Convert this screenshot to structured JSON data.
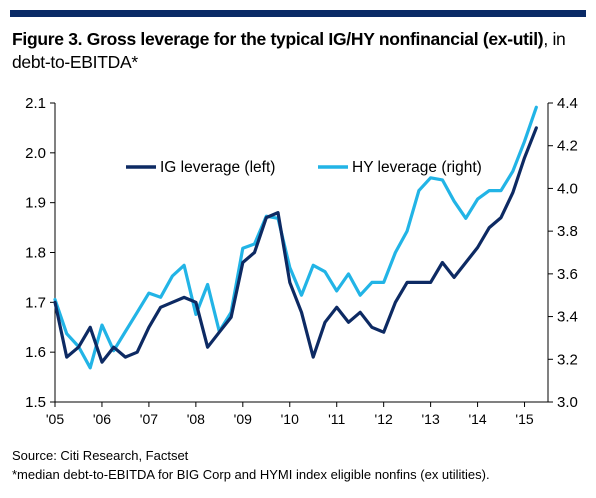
{
  "title": {
    "bold": "Figure 3. Gross leverage for the typical IG/HY nonfinancial (ex-util)",
    "rest": ", in debt-to-EBITDA*"
  },
  "footer": {
    "source": "Source: Citi Research, Factset",
    "note": "*median debt-to-EBITDA for BIG Corp and HYMI index eligible nonfins (ex utilities)."
  },
  "colors": {
    "ig": "#0d2a63",
    "hy": "#22b4e6",
    "rule": "#0a2a66"
  },
  "chart_data": {
    "type": "line",
    "x_tick_labels": [
      "'05",
      "'06",
      "'07",
      "'08",
      "'09",
      "'10",
      "'11",
      "'12",
      "'13",
      "'14",
      "'15"
    ],
    "x": [
      "2005Q1",
      "2005Q2",
      "2005Q3",
      "2005Q4",
      "2006Q1",
      "2006Q2",
      "2006Q3",
      "2006Q4",
      "2007Q1",
      "2007Q2",
      "2007Q3",
      "2007Q4",
      "2008Q1",
      "2008Q2",
      "2008Q3",
      "2008Q4",
      "2009Q1",
      "2009Q2",
      "2009Q3",
      "2009Q4",
      "2010Q1",
      "2010Q2",
      "2010Q3",
      "2010Q4",
      "2011Q1",
      "2011Q2",
      "2011Q3",
      "2011Q4",
      "2012Q1",
      "2012Q2",
      "2012Q3",
      "2012Q4",
      "2013Q1",
      "2013Q2",
      "2013Q3",
      "2013Q4",
      "2014Q1",
      "2014Q2",
      "2014Q3",
      "2014Q4",
      "2015Q1",
      "2015Q2"
    ],
    "y_left": {
      "label": "",
      "range": [
        1.5,
        2.1
      ],
      "ticks": [
        "1.5",
        "1.6",
        "1.7",
        "1.8",
        "1.9",
        "2.0",
        "2.1"
      ]
    },
    "y_right": {
      "label": "",
      "range": [
        3.0,
        4.4
      ],
      "ticks": [
        "3.0",
        "3.2",
        "3.4",
        "3.6",
        "3.8",
        "4.0",
        "4.2",
        "4.4"
      ]
    },
    "grid": false,
    "legend": "top-left",
    "series": [
      {
        "name": "IG leverage (left)",
        "axis": "left",
        "values": [
          1.7,
          1.59,
          1.61,
          1.65,
          1.58,
          1.61,
          1.59,
          1.6,
          1.65,
          1.69,
          1.7,
          1.71,
          1.7,
          1.61,
          1.64,
          1.67,
          1.78,
          1.8,
          1.87,
          1.88,
          1.74,
          1.68,
          1.59,
          1.66,
          1.69,
          1.66,
          1.68,
          1.65,
          1.64,
          1.7,
          1.74,
          1.74,
          1.74,
          1.78,
          1.75,
          1.78,
          1.81,
          1.85,
          1.87,
          1.92,
          1.99,
          2.05
        ]
      },
      {
        "name": "HY leverage (right)",
        "axis": "right",
        "values": [
          3.48,
          3.32,
          3.26,
          3.16,
          3.36,
          3.24,
          3.33,
          3.42,
          3.51,
          3.49,
          3.59,
          3.64,
          3.41,
          3.55,
          3.33,
          3.42,
          3.72,
          3.74,
          3.87,
          3.86,
          3.63,
          3.5,
          3.64,
          3.61,
          3.52,
          3.6,
          3.5,
          3.56,
          3.56,
          3.7,
          3.8,
          3.99,
          4.05,
          4.04,
          3.94,
          3.86,
          3.95,
          3.99,
          3.99,
          4.08,
          4.22,
          4.38
        ]
      }
    ]
  }
}
